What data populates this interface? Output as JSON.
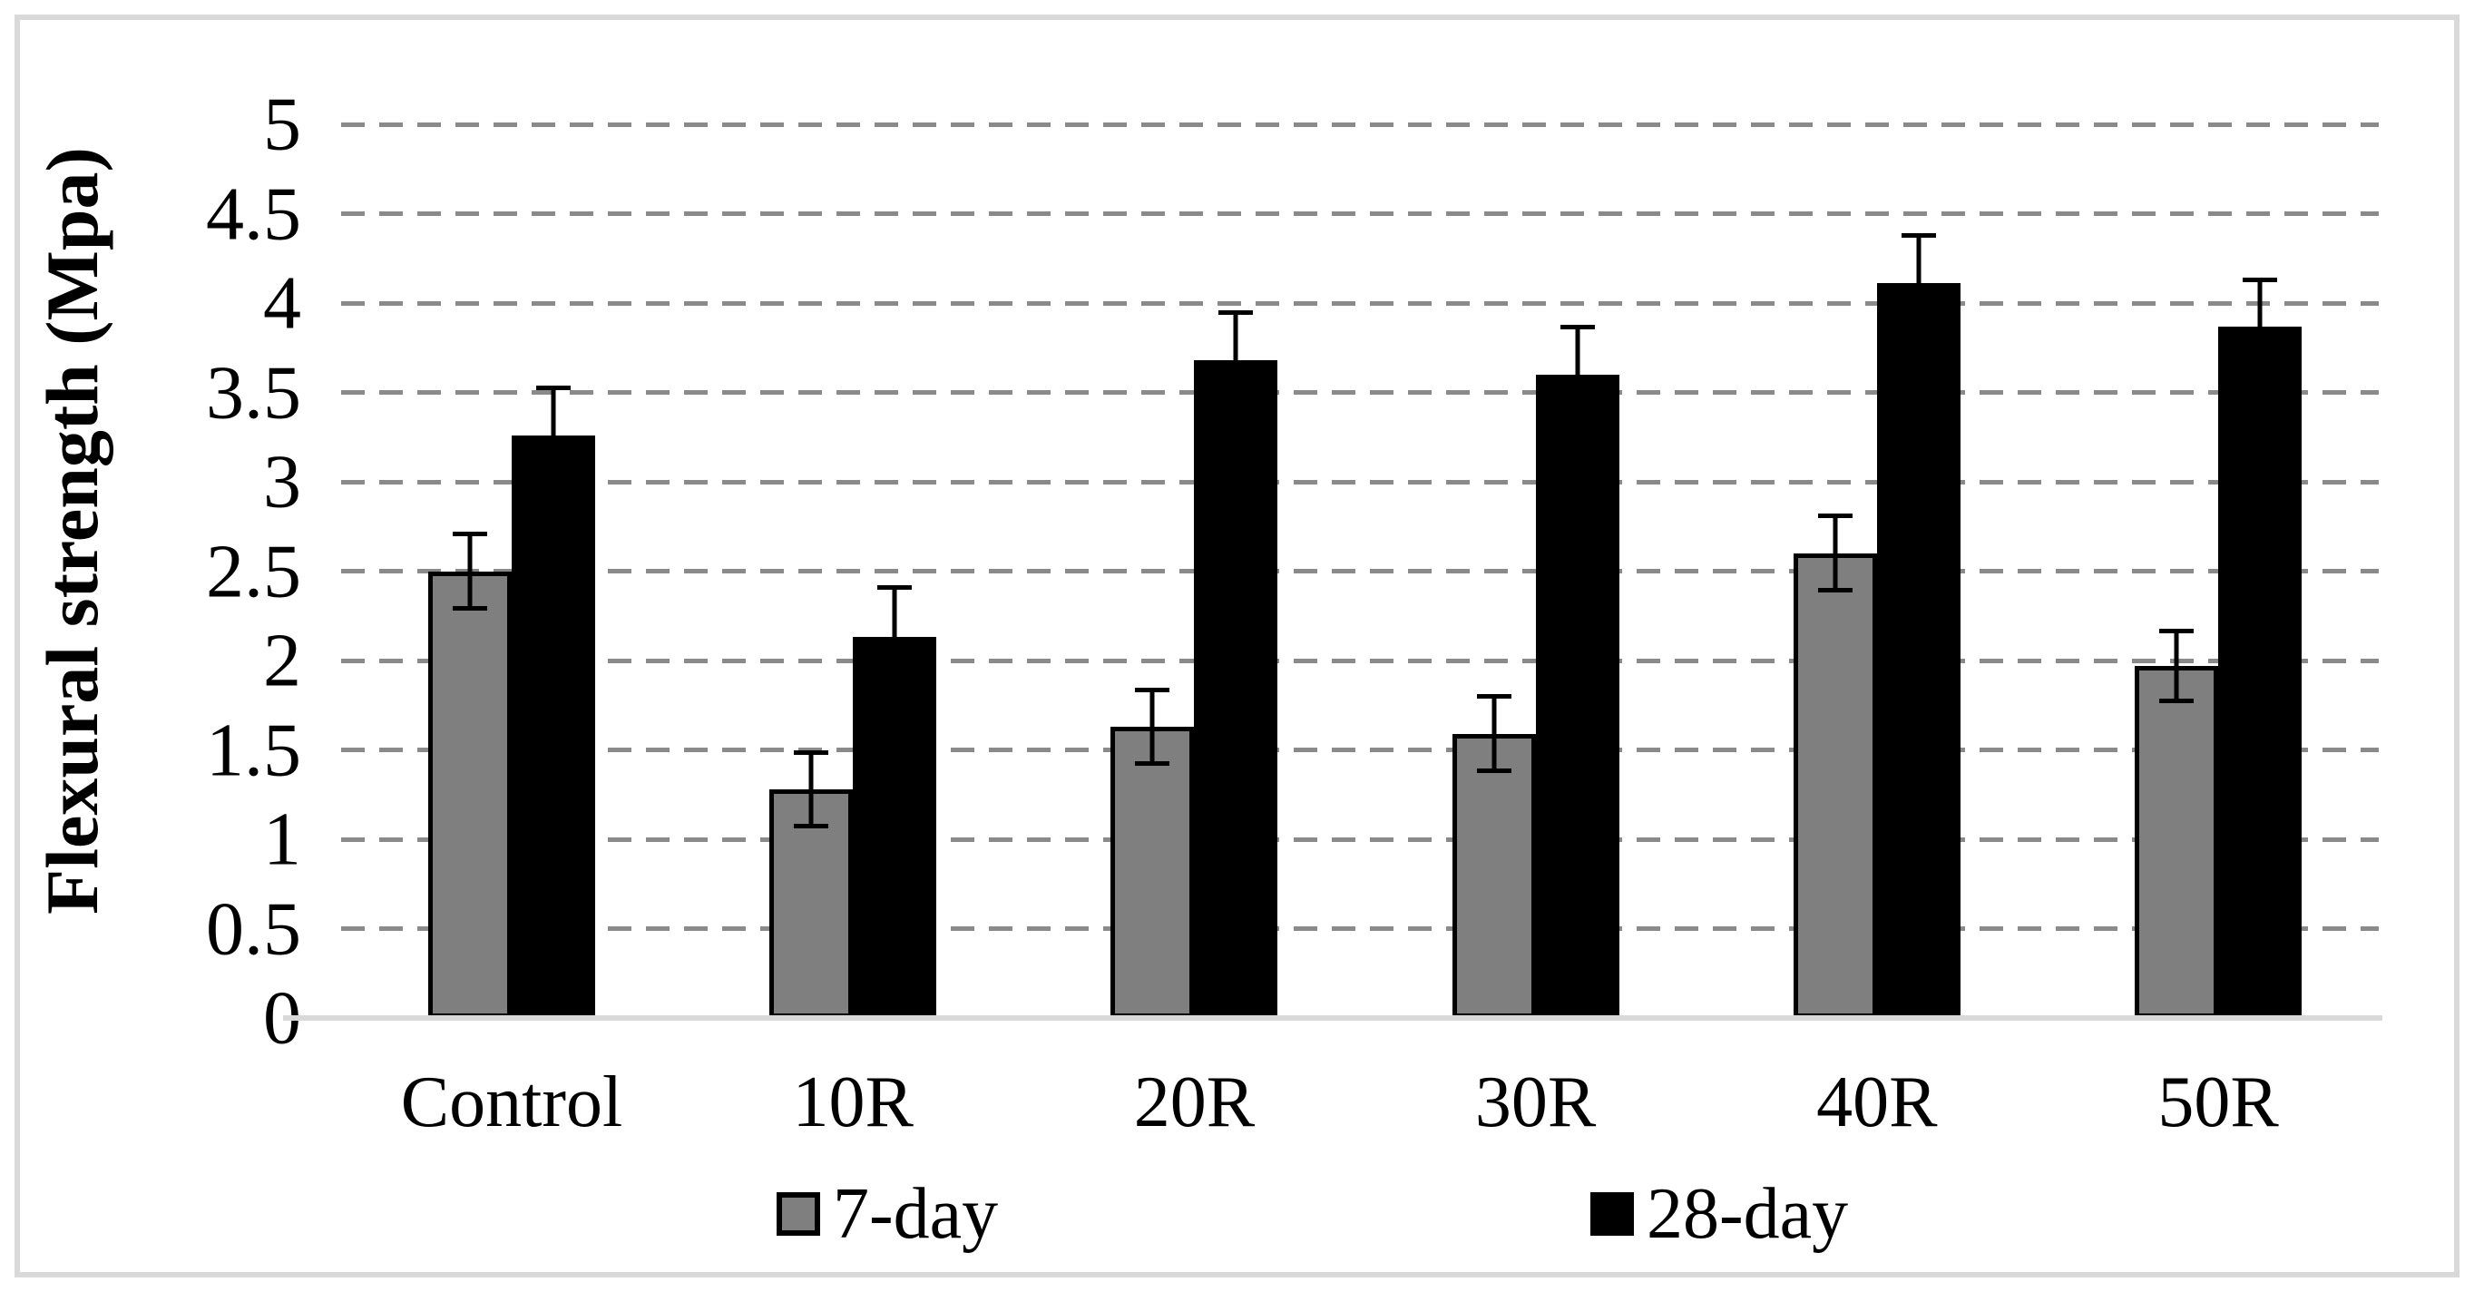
{
  "chart_data": {
    "type": "bar",
    "title": "",
    "xlabel": "",
    "ylabel": "Flexural strength (Mpa)",
    "categories": [
      "Control",
      "10R",
      "20R",
      "30R",
      "40R",
      "50R"
    ],
    "series": [
      {
        "name": "7-day",
        "color": "#7f7f7f",
        "values": [
          2.5,
          1.28,
          1.63,
          1.59,
          2.6,
          1.97
        ],
        "error_bars": [
          0.22,
          0.22,
          0.22,
          0.22,
          0.22,
          0.21
        ]
      },
      {
        "name": "28-day",
        "color": "#000000",
        "values": [
          3.26,
          2.13,
          3.68,
          3.6,
          4.11,
          3.87
        ],
        "error_bars": [
          0.28,
          0.29,
          0.28,
          0.28,
          0.28,
          0.27
        ]
      }
    ],
    "ylim": [
      0,
      5
    ],
    "ytick_step": 0.5,
    "ytick_labels": [
      "0",
      "0.5",
      "1",
      "1.5",
      "2",
      "2.5",
      "3",
      "3.5",
      "4",
      "4.5",
      "5"
    ],
    "grid": "horizontal-dashed",
    "legend_position": "bottom",
    "colors": {
      "bar_7day_fill": "#7f7f7f",
      "bar_28day_fill": "#000000",
      "bar_edge": "#000000",
      "gridline": "#8a8a8a",
      "axis_line": "#d9d9d9",
      "frame_border": "#d9d9d9",
      "text": "#000000",
      "background": "#ffffff"
    }
  }
}
